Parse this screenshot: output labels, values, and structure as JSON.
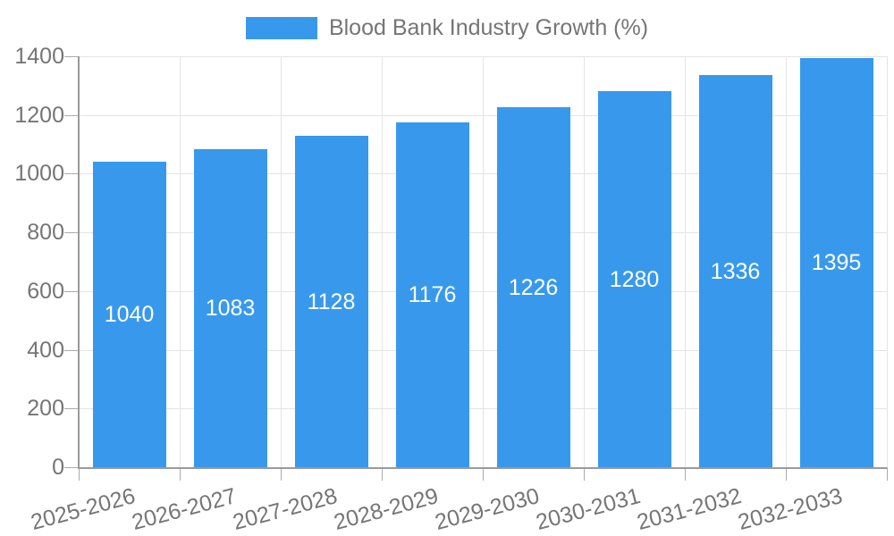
{
  "chart_data": {
    "type": "bar",
    "title": "",
    "legend_position": "top",
    "categories": [
      "2025-2026",
      "2026-2027",
      "2027-2028",
      "2028-2029",
      "2029-2030",
      "2030-2031",
      "2031-2032",
      "2032-2033"
    ],
    "series": [
      {
        "name": "Blood Bank Industry Growth (%)",
        "values": [
          1040,
          1083,
          1128,
          1176,
          1226,
          1280,
          1336,
          1395
        ]
      }
    ],
    "xlabel": "",
    "ylabel": "",
    "ylim": [
      0,
      1400
    ],
    "yticks": [
      0,
      200,
      400,
      600,
      800,
      1000,
      1200,
      1400
    ],
    "grid": true,
    "bar_value_labels": true,
    "bar_value_label_position": "center-of-bar",
    "x_label_rotation_deg": -15,
    "colors": {
      "bar": "#3899ec",
      "bar_label_text": "#ffffff",
      "axis_text": "#757575",
      "grid_line": "#e4e4e4",
      "axis_line": "#9a9a9a",
      "tick_line": "#ababab",
      "background": "#ffffff"
    }
  }
}
